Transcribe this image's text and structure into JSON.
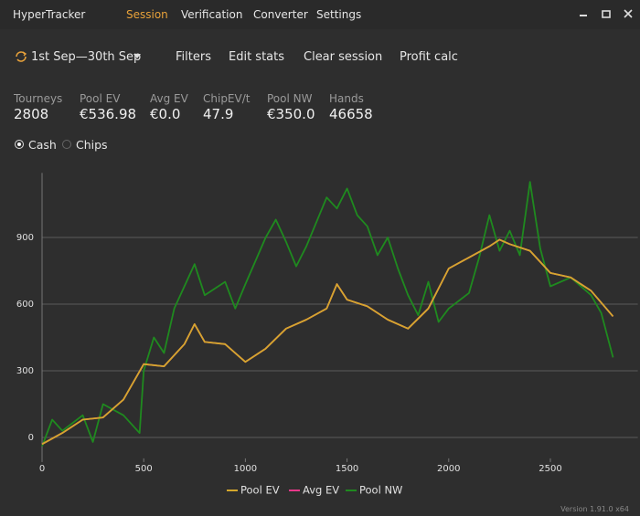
{
  "app": {
    "title": "HyperTracker",
    "menu": [
      "Session",
      "Verification",
      "Converter",
      "Settings"
    ],
    "active_menu": 0
  },
  "toolbar": {
    "date_range": "1st Sep—30th Sep",
    "buttons": [
      "Filters",
      "Edit stats",
      "Clear session",
      "Profit calc"
    ]
  },
  "stats": [
    {
      "label": "Tourneys",
      "value": "2808"
    },
    {
      "label": "Pool EV",
      "value": "€536.98"
    },
    {
      "label": "Avg EV",
      "value": "€0.0"
    },
    {
      "label": "ChipEV/t",
      "value": "47.9"
    },
    {
      "label": "Pool NW",
      "value": "€350.0"
    },
    {
      "label": "Hands",
      "value": "46658"
    }
  ],
  "mode": {
    "options": [
      "Cash",
      "Chips"
    ],
    "selected": 0
  },
  "chart_data": {
    "type": "line",
    "xlim": [
      0,
      2930
    ],
    "ylim": [
      -90,
      1190
    ],
    "xticks": [
      0,
      500,
      1000,
      1500,
      2000,
      2500
    ],
    "yticks": [
      0,
      300,
      600,
      900
    ],
    "grid": true,
    "legend": "bottom",
    "series": [
      {
        "name": "Pool EV",
        "color": "#d4a72c",
        "x": [
          0,
          100,
          200,
          300,
          400,
          500,
          600,
          700,
          750,
          800,
          900,
          1000,
          1100,
          1200,
          1300,
          1400,
          1450,
          1500,
          1600,
          1700,
          1800,
          1900,
          2000,
          2100,
          2200,
          2250,
          2300,
          2400,
          2500,
          2600,
          2700,
          2808
        ],
        "values": [
          -30,
          20,
          80,
          90,
          170,
          330,
          320,
          420,
          510,
          430,
          420,
          340,
          400,
          490,
          530,
          580,
          690,
          620,
          590,
          530,
          490,
          580,
          760,
          810,
          860,
          890,
          870,
          840,
          740,
          720,
          660,
          545
        ]
      },
      {
        "name": "Avg EV",
        "color": "#e8388a",
        "x": [
          0,
          100,
          200,
          300,
          400,
          500,
          600,
          700,
          750,
          800,
          900,
          1000,
          1100,
          1200,
          1300,
          1400,
          1450,
          1500,
          1600,
          1700,
          1800,
          1900,
          2000,
          2100,
          2200,
          2250,
          2300,
          2400,
          2500,
          2600,
          2700,
          2808
        ],
        "values": [
          -30,
          20,
          80,
          90,
          170,
          330,
          320,
          420,
          510,
          430,
          420,
          340,
          400,
          490,
          530,
          580,
          690,
          620,
          590,
          530,
          490,
          580,
          760,
          810,
          860,
          890,
          870,
          840,
          740,
          720,
          660,
          545
        ]
      },
      {
        "name": "Pool NW",
        "color": "#1f8a1f",
        "x": [
          0,
          50,
          100,
          200,
          250,
          300,
          400,
          480,
          500,
          550,
          600,
          650,
          700,
          750,
          800,
          900,
          950,
          1000,
          1100,
          1150,
          1200,
          1250,
          1300,
          1400,
          1450,
          1500,
          1550,
          1600,
          1650,
          1700,
          1750,
          1800,
          1850,
          1900,
          1950,
          2000,
          2100,
          2150,
          2200,
          2250,
          2300,
          2350,
          2400,
          2450,
          2500,
          2600,
          2700,
          2750,
          2808
        ],
        "values": [
          -40,
          80,
          30,
          100,
          -20,
          150,
          100,
          20,
          300,
          450,
          380,
          580,
          680,
          780,
          640,
          700,
          580,
          690,
          900,
          980,
          880,
          770,
          860,
          1080,
          1030,
          1120,
          1000,
          950,
          820,
          900,
          760,
          640,
          550,
          700,
          520,
          580,
          650,
          810,
          1000,
          840,
          930,
          820,
          1150,
          850,
          680,
          720,
          640,
          560,
          360
        ]
      }
    ]
  },
  "footer": {
    "version": "Version 1.91.0 x64"
  }
}
